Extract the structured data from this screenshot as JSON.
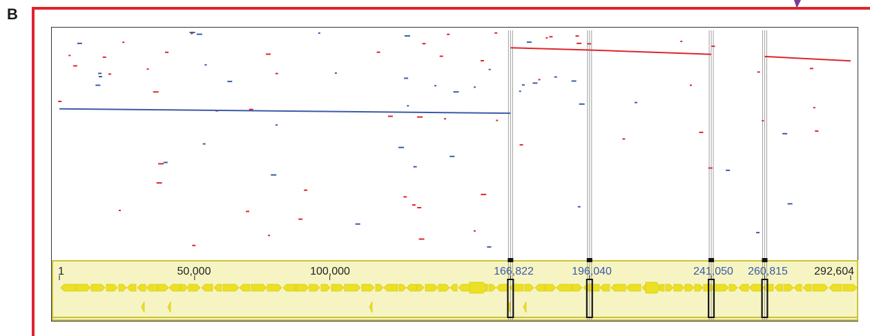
{
  "panel_label": "B",
  "colors": {
    "frame": "#e0232b",
    "forward_hits": "#e0232b",
    "reverse_hits": "#3a5aa8",
    "gene_track_bg": "#f7f4c4",
    "gene_track_border": "#c9c23a",
    "gene_arrow": "#ece024",
    "breakpoint_line": "#777777"
  },
  "genome_track": {
    "start_label": "1",
    "scale_ticks": [
      "50,000",
      "100,000"
    ],
    "breakpoint_labels": [
      "166,822",
      "196,040",
      "241,050",
      "260,815"
    ],
    "end_label": "292,604"
  },
  "chart_data": {
    "type": "scatter",
    "title": "",
    "xlabel": "",
    "ylabel": "",
    "xlim": [
      1,
      292604
    ],
    "positions": [
      1,
      50000,
      100000,
      166822,
      196040,
      241050,
      260815,
      292604
    ],
    "breakpoints": [
      166822,
      196040,
      241050,
      260815
    ],
    "series": [
      {
        "name": "",
        "color": "red",
        "segments": [
          {
            "x": [
              166822,
              196040
            ],
            "y": [
              0.92,
              0.91
            ]
          },
          {
            "x": [
              196040,
              241050
            ],
            "y": [
              0.91,
              0.89
            ]
          },
          {
            "x": [
              260815,
              292604
            ],
            "y": [
              0.88,
              0.86
            ]
          }
        ]
      },
      {
        "name": "",
        "color": "blue",
        "segments": [
          {
            "x": [
              1,
              166822
            ],
            "y": [
              0.64,
              0.62
            ]
          }
        ]
      }
    ]
  }
}
